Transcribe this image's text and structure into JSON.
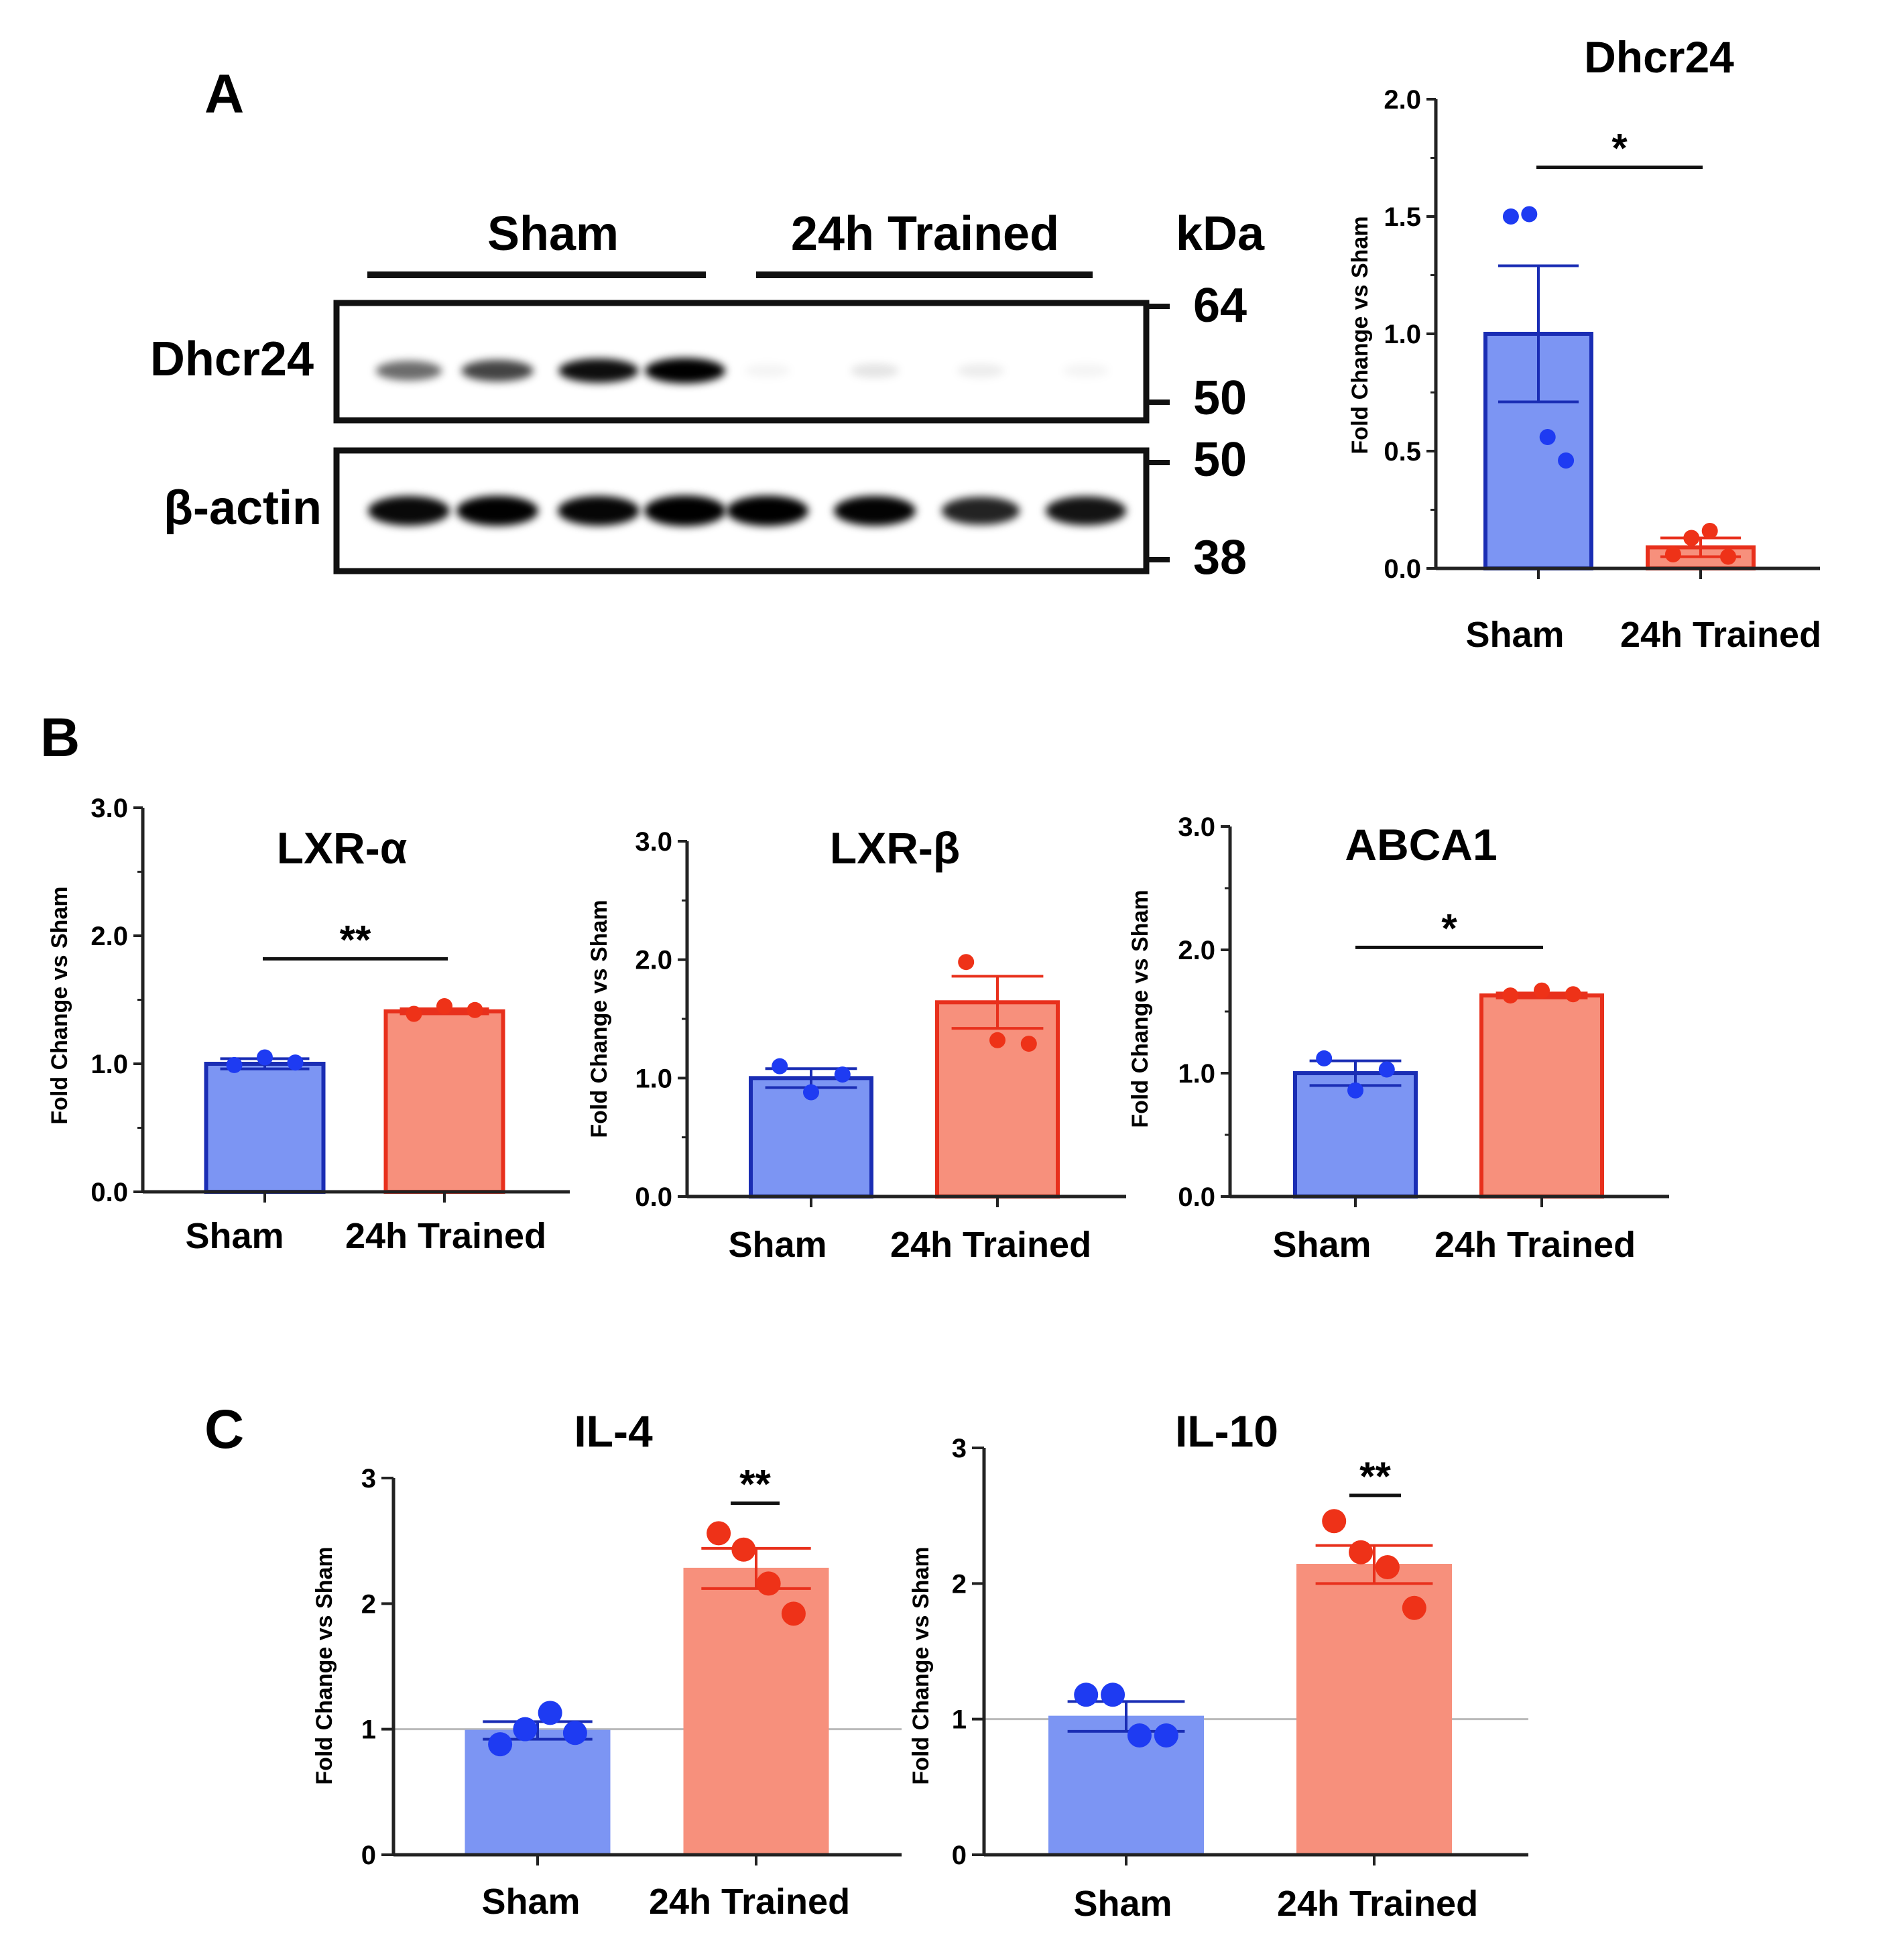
{
  "panels": {
    "A": "A",
    "B": "B",
    "C": "C"
  },
  "colors": {
    "sham_fill": "#7C95F3",
    "sham_edge": "#1A2DB4",
    "sham_dot": "#1E3BF2",
    "trained_fill": "#F7907C",
    "trained_edge": "#E8301C",
    "trained_dot": "#EE3218",
    "axis": "#222222",
    "refline": "#BBBBBB"
  },
  "blot": {
    "groups": [
      "Sham",
      "24h Trained"
    ],
    "kda_header": "kDa",
    "rows": [
      {
        "label": "Dhcr24",
        "intensity": [
          0.55,
          0.7,
          0.9,
          1.0,
          0.04,
          0.1,
          0.07,
          0.04
        ],
        "markers": [
          "64",
          "50"
        ]
      },
      {
        "label": "β-actin",
        "intensity": [
          0.92,
          0.95,
          0.93,
          1.0,
          0.97,
          0.94,
          0.82,
          0.88
        ],
        "markers": [
          "50",
          "38"
        ]
      }
    ]
  },
  "chart_data": [
    {
      "id": "dhcr24",
      "panel": "A",
      "type": "bar",
      "title": "Dhcr24",
      "ylabel": "Fold Change vs Sham",
      "ylim": [
        0,
        2.0
      ],
      "yticks": [
        "0.0",
        "0.5",
        "1.0",
        "1.5",
        "2.0"
      ],
      "ytick_values": [
        0,
        0.5,
        1.0,
        1.5,
        2.0
      ],
      "categories": [
        "Sham",
        "24h Trained"
      ],
      "values": [
        1.0,
        0.09
      ],
      "sem": [
        0.29,
        0.04
      ],
      "points": [
        [
          1.5,
          1.51,
          0.56,
          0.46
        ],
        [
          0.06,
          0.13,
          0.16,
          0.05
        ]
      ],
      "significance": {
        "label": "*",
        "y": 1.71
      },
      "refline": null
    },
    {
      "id": "lxra",
      "panel": "B",
      "type": "bar",
      "title": "LXR-α",
      "ylabel": "Fold Change vs Sham",
      "ylim": [
        0,
        3.0
      ],
      "yticks": [
        "0.0",
        "1.0",
        "2.0",
        "3.0"
      ],
      "ytick_values": [
        0,
        1,
        2,
        3
      ],
      "categories": [
        "Sham",
        "24h Trained"
      ],
      "values": [
        1.0,
        1.41
      ],
      "sem": [
        0.04,
        0.02
      ],
      "points": [
        [
          0.99,
          1.05,
          1.01
        ],
        [
          1.39,
          1.45,
          1.42
        ]
      ],
      "significance": {
        "label": "**",
        "y": 1.82
      },
      "refline": null
    },
    {
      "id": "lxrb",
      "panel": "B",
      "type": "bar",
      "title": "LXR-β",
      "ylabel": "Fold Change vs Sham",
      "ylim": [
        0,
        3.0
      ],
      "yticks": [
        "0.0",
        "1.0",
        "2.0",
        "3.0"
      ],
      "ytick_values": [
        0,
        1,
        2,
        3
      ],
      "categories": [
        "Sham",
        "24h Trained"
      ],
      "values": [
        1.0,
        1.64
      ],
      "sem": [
        0.08,
        0.22
      ],
      "points": [
        [
          1.1,
          0.88,
          1.03
        ],
        [
          1.98,
          1.32,
          1.29
        ]
      ],
      "significance": null,
      "refline": null
    },
    {
      "id": "abca1",
      "panel": "B",
      "type": "bar",
      "title": "ABCA1",
      "ylabel": "Fold Change vs Sham",
      "ylim": [
        0,
        3.0
      ],
      "yticks": [
        "0.0",
        "1.0",
        "2.0",
        "3.0"
      ],
      "ytick_values": [
        0,
        1,
        2,
        3
      ],
      "categories": [
        "Sham",
        "24h Trained"
      ],
      "values": [
        1.0,
        1.63
      ],
      "sem": [
        0.1,
        0.02
      ],
      "points": [
        [
          1.12,
          0.86,
          1.03
        ],
        [
          1.63,
          1.67,
          1.64
        ]
      ],
      "significance": {
        "label": "*",
        "y": 2.02
      },
      "refline": null
    },
    {
      "id": "il4",
      "panel": "C",
      "type": "bar",
      "title": "IL-4",
      "ylabel": "Fold Change vs Sham",
      "ylim": [
        0,
        3
      ],
      "yticks": [
        "0",
        "1",
        "2",
        "3"
      ],
      "ytick_values": [
        0,
        1,
        2,
        3
      ],
      "categories": [
        "Sham",
        "24h Trained"
      ],
      "values": [
        0.99,
        2.28
      ],
      "sem": [
        0.07,
        0.16
      ],
      "points": [
        [
          0.88,
          1.0,
          1.13,
          0.97
        ],
        [
          2.56,
          2.43,
          2.16,
          1.92
        ]
      ],
      "significance": {
        "label": "**",
        "y": 2.8
      },
      "refline": 1.0
    },
    {
      "id": "il10",
      "panel": "C",
      "type": "bar",
      "title": "IL-10",
      "ylabel": "Fold Change vs Sham",
      "ylim": [
        0,
        3
      ],
      "yticks": [
        "0",
        "1",
        "2",
        "3"
      ],
      "ytick_values": [
        0,
        1,
        2,
        3
      ],
      "categories": [
        "Sham",
        "24h Trained"
      ],
      "values": [
        1.02,
        2.14
      ],
      "sem": [
        0.11,
        0.14
      ],
      "points": [
        [
          1.18,
          1.18,
          0.88,
          0.88
        ],
        [
          2.46,
          2.23,
          2.12,
          1.82
        ]
      ],
      "significance": {
        "label": "**",
        "y": 2.65
      },
      "refline": 1.0
    }
  ]
}
